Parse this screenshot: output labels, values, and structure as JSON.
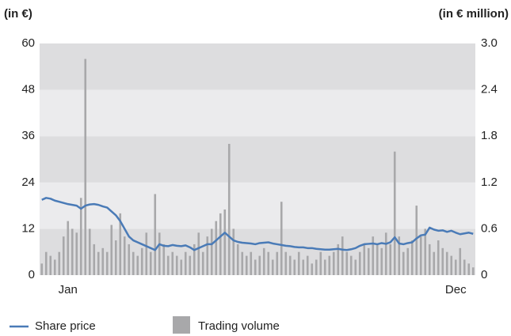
{
  "chart_data": {
    "type": "combo",
    "y_label": "(in €)",
    "y2_label": "(in € million)",
    "categories": [
      null,
      null,
      null,
      null,
      null,
      null,
      "Jan",
      null,
      null,
      null,
      null,
      null,
      null,
      null,
      null,
      null,
      null,
      null,
      null,
      null,
      null,
      null,
      null,
      null,
      null,
      null,
      null,
      null,
      null,
      null,
      null,
      null,
      null,
      null,
      null,
      null,
      null,
      null,
      null,
      null,
      null,
      null,
      null,
      null,
      null,
      null,
      null,
      null,
      null,
      null,
      null,
      null,
      null,
      null,
      null,
      null,
      null,
      null,
      null,
      null,
      null,
      null,
      null,
      null,
      null,
      null,
      null,
      null,
      null,
      null,
      null,
      null,
      null,
      null,
      null,
      null,
      null,
      null,
      null,
      null,
      null,
      null,
      null,
      null,
      null,
      null,
      null,
      null,
      null,
      null,
      null,
      null,
      null,
      null,
      null,
      "Dec",
      null,
      null,
      null,
      null
    ],
    "series": [
      {
        "name": "Trading volume",
        "type": "bar",
        "axis": "y2",
        "color": "#a8a8aa",
        "values": [
          0.15,
          0.3,
          0.25,
          0.2,
          0.3,
          0.5,
          0.7,
          0.6,
          0.55,
          1.0,
          2.8,
          0.6,
          0.4,
          0.3,
          0.35,
          0.3,
          0.65,
          0.45,
          0.8,
          0.5,
          0.4,
          0.3,
          0.25,
          0.35,
          0.55,
          0.3,
          1.05,
          0.55,
          0.4,
          0.25,
          0.3,
          0.25,
          0.2,
          0.3,
          0.25,
          0.4,
          0.55,
          0.3,
          0.5,
          0.6,
          0.7,
          0.8,
          0.85,
          1.7,
          0.6,
          0.4,
          0.3,
          0.25,
          0.3,
          0.2,
          0.25,
          0.35,
          0.3,
          0.2,
          0.3,
          0.95,
          0.3,
          0.25,
          0.2,
          0.3,
          0.2,
          0.25,
          0.15,
          0.2,
          0.3,
          0.2,
          0.25,
          0.3,
          0.4,
          0.5,
          0.3,
          0.25,
          0.2,
          0.3,
          0.4,
          0.35,
          0.5,
          0.4,
          0.35,
          0.55,
          0.4,
          1.6,
          0.5,
          0.3,
          0.35,
          0.45,
          0.9,
          0.5,
          0.6,
          0.4,
          0.3,
          0.45,
          0.35,
          0.3,
          0.25,
          0.2,
          0.35,
          0.2,
          0.15,
          0.1
        ]
      },
      {
        "name": "Share price",
        "type": "line",
        "axis": "y",
        "color": "#4a7bb7",
        "values": [
          19.5,
          20,
          19.8,
          19.3,
          19,
          18.7,
          18.4,
          18.2,
          18,
          17.2,
          18,
          18.3,
          18.4,
          18.2,
          17.8,
          17.5,
          16.5,
          15.5,
          14,
          12,
          10,
          9,
          8.5,
          8,
          7.5,
          7,
          6.5,
          8,
          7.6,
          7.5,
          7.8,
          7.6,
          7.5,
          7.7,
          7.2,
          6.5,
          7,
          7.5,
          8,
          8,
          9,
          10,
          11,
          10,
          9,
          8.6,
          8.4,
          8.3,
          8.2,
          8,
          8.3,
          8.4,
          8.5,
          8.2,
          8,
          7.8,
          7.6,
          7.5,
          7.3,
          7.2,
          7.2,
          7,
          7,
          6.8,
          6.7,
          6.6,
          6.6,
          6.7,
          6.8,
          6.6,
          6.5,
          6.7,
          7,
          7.6,
          8,
          8.1,
          8.2,
          8,
          8.3,
          8.1,
          8.5,
          9.8,
          8.2,
          8,
          8.3,
          8.5,
          9.5,
          10.3,
          10.5,
          12.3,
          11.8,
          11.5,
          11.6,
          11.2,
          11.5,
          11,
          10.6,
          10.8,
          11,
          10.7
        ]
      }
    ],
    "ylim": [
      0,
      60
    ],
    "yticks": [
      0,
      12,
      24,
      36,
      48,
      60
    ],
    "y2lim": [
      0,
      3
    ],
    "y2ticks": [
      0,
      0.6,
      1.2,
      1.8,
      2.4,
      {
        "value": 3,
        "label": "3.0"
      }
    ],
    "grid": true
  }
}
